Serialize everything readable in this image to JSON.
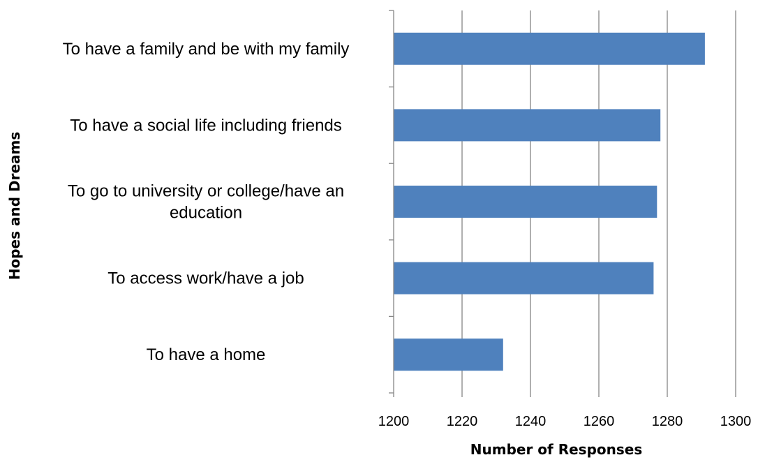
{
  "chart_data": {
    "type": "bar",
    "orientation": "horizontal",
    "categories": [
      "To have a family and be with my family",
      "To have a social life including friends",
      [
        "To go to university or college/have an",
        "education"
      ],
      "To access work/have a job",
      "To have a home"
    ],
    "values": [
      1291,
      1278,
      1277,
      1276,
      1232
    ],
    "xlabel": "Number of Responses",
    "ylabel": "Hopes and Dreams",
    "xlim": [
      1200,
      1300
    ],
    "xticks": [
      "1200",
      "1220",
      "1240",
      "1260",
      "1280",
      "1300"
    ],
    "grid": "vertical",
    "legend": "none",
    "bar_color": "#4F81BD",
    "gridline_color": "#868686"
  }
}
